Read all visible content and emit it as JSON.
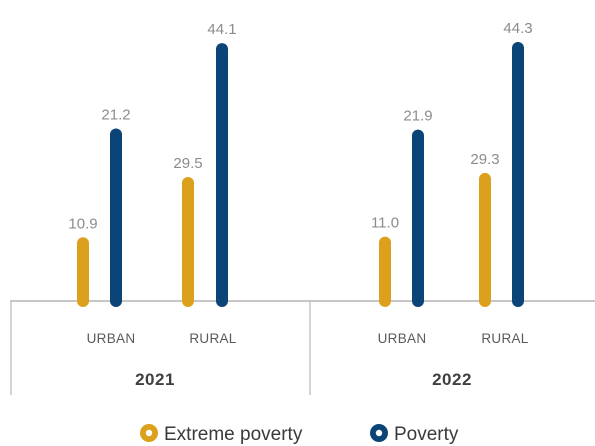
{
  "chart_data": {
    "type": "bar",
    "groups": [
      {
        "year": "2021",
        "categories": [
          "URBAN",
          "RURAL"
        ]
      },
      {
        "year": "2022",
        "categories": [
          "URBAN",
          "RURAL"
        ]
      }
    ],
    "series": [
      {
        "name": "Extreme poverty",
        "color": "#dca11c",
        "values": [
          [
            10.9,
            21.2
          ],
          [
            11.0,
            21.9
          ]
        ]
      },
      {
        "name": "Poverty",
        "color": "#0b4476",
        "values": [
          [
            29.5,
            44.1
          ],
          [
            29.3,
            44.3
          ]
        ]
      }
    ],
    "value_labels": [
      [
        "10.9",
        "21.2",
        "29.5",
        "44.1"
      ],
      [
        "11.0",
        "21.9",
        "29.3",
        "44.3"
      ]
    ],
    "ylim": [
      0,
      46
    ],
    "legend": "bottom-center",
    "grid": false
  }
}
